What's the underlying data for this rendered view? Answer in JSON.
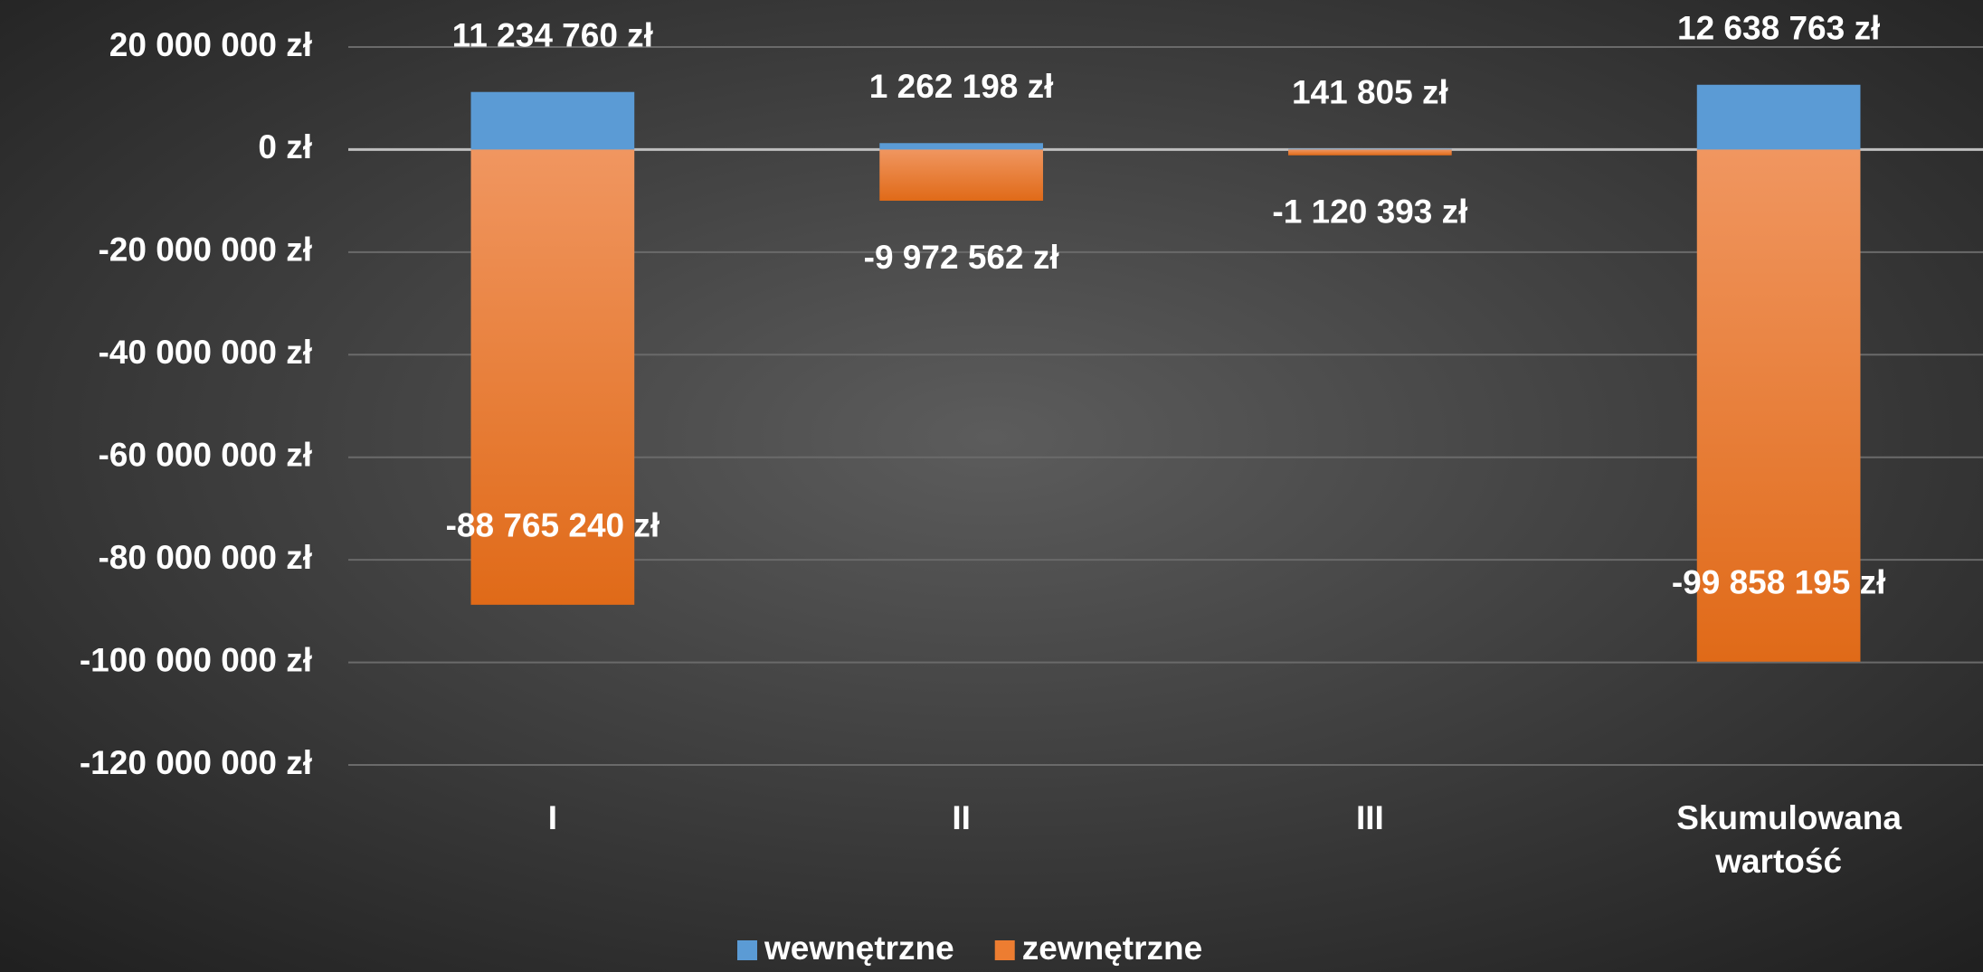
{
  "chart_data": {
    "type": "bar",
    "stacked": true,
    "categories": [
      "I",
      "II",
      "III",
      "Skumulowana wartość"
    ],
    "series": [
      {
        "name": "wewnętrzne",
        "color": "#5b9bd5",
        "values": [
          11234760,
          1262198,
          141805,
          12638763
        ],
        "value_labels": [
          "11 234 760 zł",
          "1 262 198 zł",
          "141 805 zł",
          "12 638 763 zł"
        ]
      },
      {
        "name": "zewnętrzne",
        "color": "#ed7d31",
        "values": [
          -88765240,
          -9972562,
          -1120393,
          -99858195
        ],
        "value_labels": [
          "-88 765 240 zł",
          "-9 972 562 zł",
          "-1 120 393 zł",
          "-99 858 195 zł"
        ]
      }
    ],
    "ylim": [
      -120000000,
      20000000
    ],
    "yticks": [
      {
        "value": -120000000,
        "label": "-120 000 000 zł"
      },
      {
        "value": -100000000,
        "label": "-100 000 000 zł"
      },
      {
        "value": -80000000,
        "label": "-80 000 000 zł"
      },
      {
        "value": -60000000,
        "label": "-60 000 000 zł"
      },
      {
        "value": -40000000,
        "label": "-40 000 000 zł"
      },
      {
        "value": -20000000,
        "label": "-20 000 000 zł"
      },
      {
        "value": 0,
        "label": "0 zł"
      },
      {
        "value": 20000000,
        "label": "20 000 000 zł"
      }
    ],
    "grid": true,
    "legend": "bottom"
  }
}
